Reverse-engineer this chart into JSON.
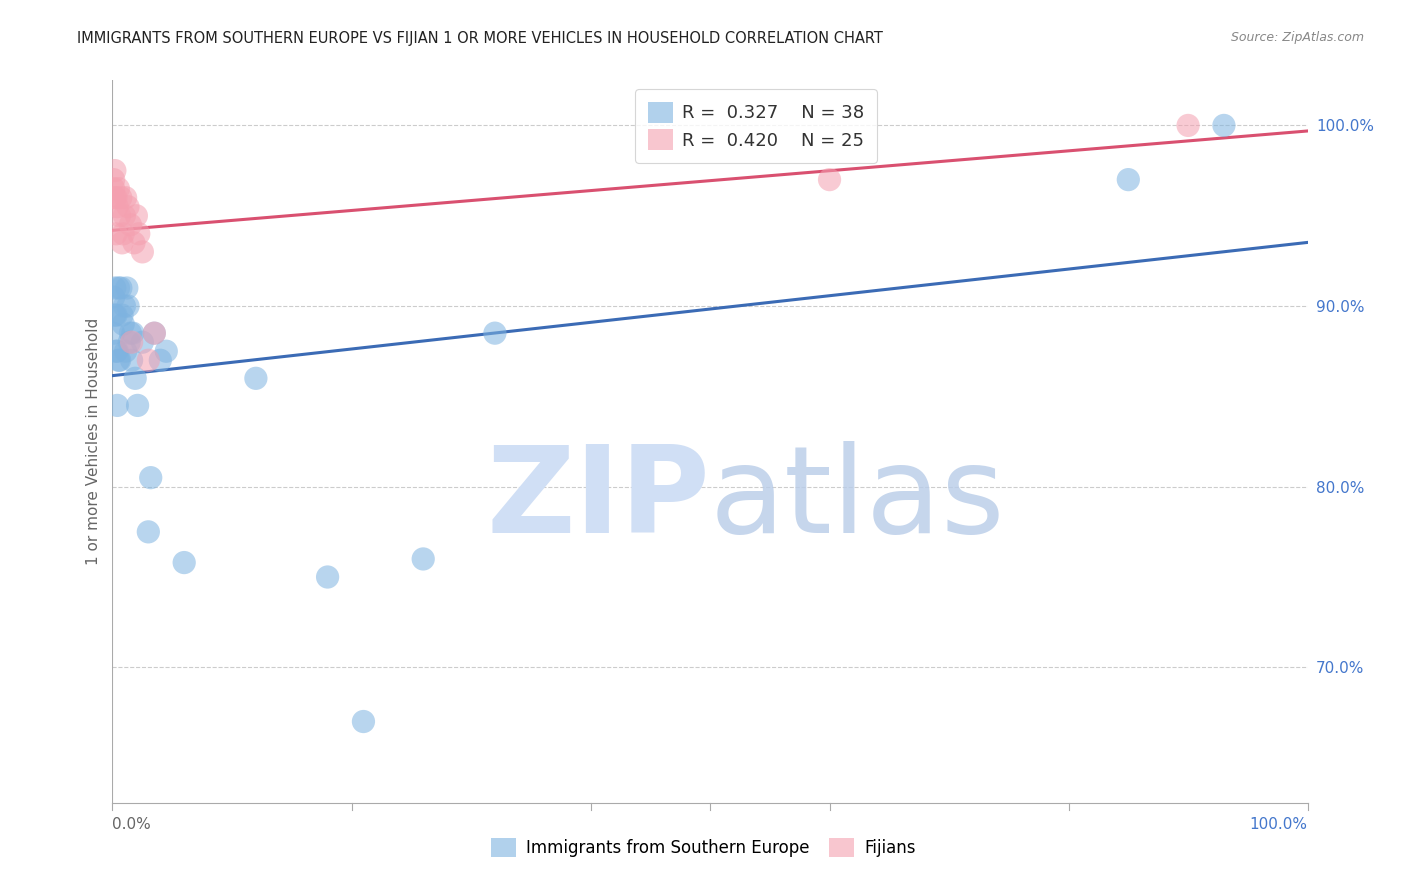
{
  "title": "IMMIGRANTS FROM SOUTHERN EUROPE VS FIJIAN 1 OR MORE VEHICLES IN HOUSEHOLD CORRELATION CHART",
  "source": "Source: ZipAtlas.com",
  "ylabel": "1 or more Vehicles in Household",
  "xlim": [
    0.0,
    1.0
  ],
  "ylim": [
    0.625,
    1.025
  ],
  "yticks": [
    1.0,
    0.9,
    0.8,
    0.7
  ],
  "ytick_labels": [
    "100.0%",
    "90.0%",
    "80.0%",
    "70.0%"
  ],
  "blue_R": "0.327",
  "blue_N": "38",
  "pink_R": "0.420",
  "pink_N": "25",
  "blue_color": "#7EB3E0",
  "pink_color": "#F4A0B0",
  "blue_line_color": "#3B6BB5",
  "pink_line_color": "#D95070",
  "watermark_zip": "ZIP",
  "watermark_atlas": "atlas",
  "watermark_zip_color": "#D0DFF5",
  "watermark_atlas_color": "#B8CCE8",
  "legend_label_blue": "Immigrants from Southern Europe",
  "legend_label_pink": "Fijians",
  "grid_color": "#CCCCCC",
  "bg_color": "#FFFFFF",
  "title_color": "#222222",
  "axis_label_color": "#666666",
  "right_tick_color": "#4477CC",
  "blue_x": [
    0.001,
    0.001,
    0.002,
    0.002,
    0.003,
    0.003,
    0.004,
    0.004,
    0.005,
    0.005,
    0.006,
    0.007,
    0.008,
    0.009,
    0.01,
    0.011,
    0.012,
    0.013,
    0.014,
    0.015,
    0.016,
    0.017,
    0.019,
    0.021,
    0.025,
    0.03,
    0.032,
    0.035,
    0.04,
    0.045,
    0.06,
    0.12,
    0.18,
    0.21,
    0.26,
    0.32,
    0.85,
    0.93
  ],
  "blue_y": [
    0.885,
    0.905,
    0.895,
    0.91,
    0.875,
    0.895,
    0.845,
    0.875,
    0.87,
    0.91,
    0.87,
    0.91,
    0.895,
    0.89,
    0.9,
    0.875,
    0.91,
    0.9,
    0.88,
    0.885,
    0.87,
    0.885,
    0.86,
    0.845,
    0.88,
    0.775,
    0.805,
    0.885,
    0.87,
    0.875,
    0.758,
    0.86,
    0.75,
    0.67,
    0.76,
    0.885,
    0.97,
    1.0
  ],
  "pink_x": [
    0.001,
    0.001,
    0.002,
    0.002,
    0.003,
    0.003,
    0.004,
    0.005,
    0.006,
    0.007,
    0.008,
    0.009,
    0.01,
    0.011,
    0.013,
    0.015,
    0.016,
    0.018,
    0.02,
    0.022,
    0.025,
    0.03,
    0.035,
    0.6,
    0.9
  ],
  "pink_y": [
    0.965,
    0.97,
    0.96,
    0.975,
    0.94,
    0.96,
    0.955,
    0.965,
    0.95,
    0.96,
    0.935,
    0.94,
    0.95,
    0.96,
    0.955,
    0.945,
    0.88,
    0.935,
    0.95,
    0.94,
    0.93,
    0.87,
    0.885,
    0.97,
    1.0
  ]
}
